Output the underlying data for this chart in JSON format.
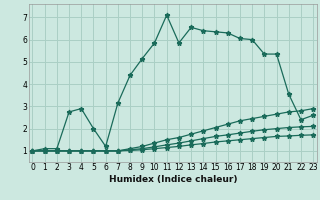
{
  "xlabel": "Humidex (Indice chaleur)",
  "bg_color": "#cce8e0",
  "line_color": "#1a6b5a",
  "grid_color": "#aacfc5",
  "series": [
    {
      "x": [
        0,
        1,
        2,
        3,
        4,
        5,
        6,
        7,
        8,
        9,
        10,
        11,
        12,
        13,
        14,
        15,
        16,
        17,
        18,
        19,
        20,
        21,
        22,
        23
      ],
      "y": [
        1,
        1.1,
        1.1,
        2.75,
        2.9,
        2.0,
        1.2,
        3.15,
        4.4,
        5.15,
        5.85,
        7.1,
        5.85,
        6.55,
        6.4,
        6.35,
        6.3,
        6.05,
        6.0,
        5.35,
        5.35,
        3.55,
        2.4,
        2.6
      ]
    },
    {
      "x": [
        0,
        1,
        2,
        3,
        4,
        5,
        6,
        7,
        8,
        9,
        10,
        11,
        12,
        13,
        14,
        15,
        16,
        17,
        18,
        19,
        20,
        21,
        22,
        23
      ],
      "y": [
        1,
        1.0,
        1.0,
        1.0,
        1.0,
        1.0,
        1.0,
        1.0,
        1.1,
        1.2,
        1.35,
        1.5,
        1.6,
        1.75,
        1.9,
        2.05,
        2.2,
        2.35,
        2.45,
        2.55,
        2.65,
        2.75,
        2.8,
        2.9
      ]
    },
    {
      "x": [
        0,
        1,
        2,
        3,
        4,
        5,
        6,
        7,
        8,
        9,
        10,
        11,
        12,
        13,
        14,
        15,
        16,
        17,
        18,
        19,
        20,
        21,
        22,
        23
      ],
      "y": [
        1,
        1.0,
        1.0,
        1.0,
        1.0,
        1.0,
        1.0,
        1.0,
        1.05,
        1.1,
        1.18,
        1.27,
        1.35,
        1.45,
        1.55,
        1.65,
        1.72,
        1.8,
        1.88,
        1.95,
        2.0,
        2.05,
        2.08,
        2.1
      ]
    },
    {
      "x": [
        0,
        1,
        2,
        3,
        4,
        5,
        6,
        7,
        8,
        9,
        10,
        11,
        12,
        13,
        14,
        15,
        16,
        17,
        18,
        19,
        20,
        21,
        22,
        23
      ],
      "y": [
        1,
        1.0,
        1.0,
        1.0,
        1.0,
        1.0,
        1.0,
        1.0,
        1.02,
        1.05,
        1.1,
        1.15,
        1.2,
        1.27,
        1.33,
        1.4,
        1.45,
        1.5,
        1.55,
        1.6,
        1.65,
        1.67,
        1.7,
        1.72
      ]
    }
  ],
  "xlim": [
    -0.3,
    23.3
  ],
  "ylim": [
    0.5,
    7.6
  ],
  "yticks": [
    1,
    2,
    3,
    4,
    5,
    6,
    7
  ],
  "xticks": [
    0,
    1,
    2,
    3,
    4,
    5,
    6,
    7,
    8,
    9,
    10,
    11,
    12,
    13,
    14,
    15,
    16,
    17,
    18,
    19,
    20,
    21,
    22,
    23
  ],
  "tick_fontsize": 5.5,
  "xlabel_fontsize": 6.5
}
